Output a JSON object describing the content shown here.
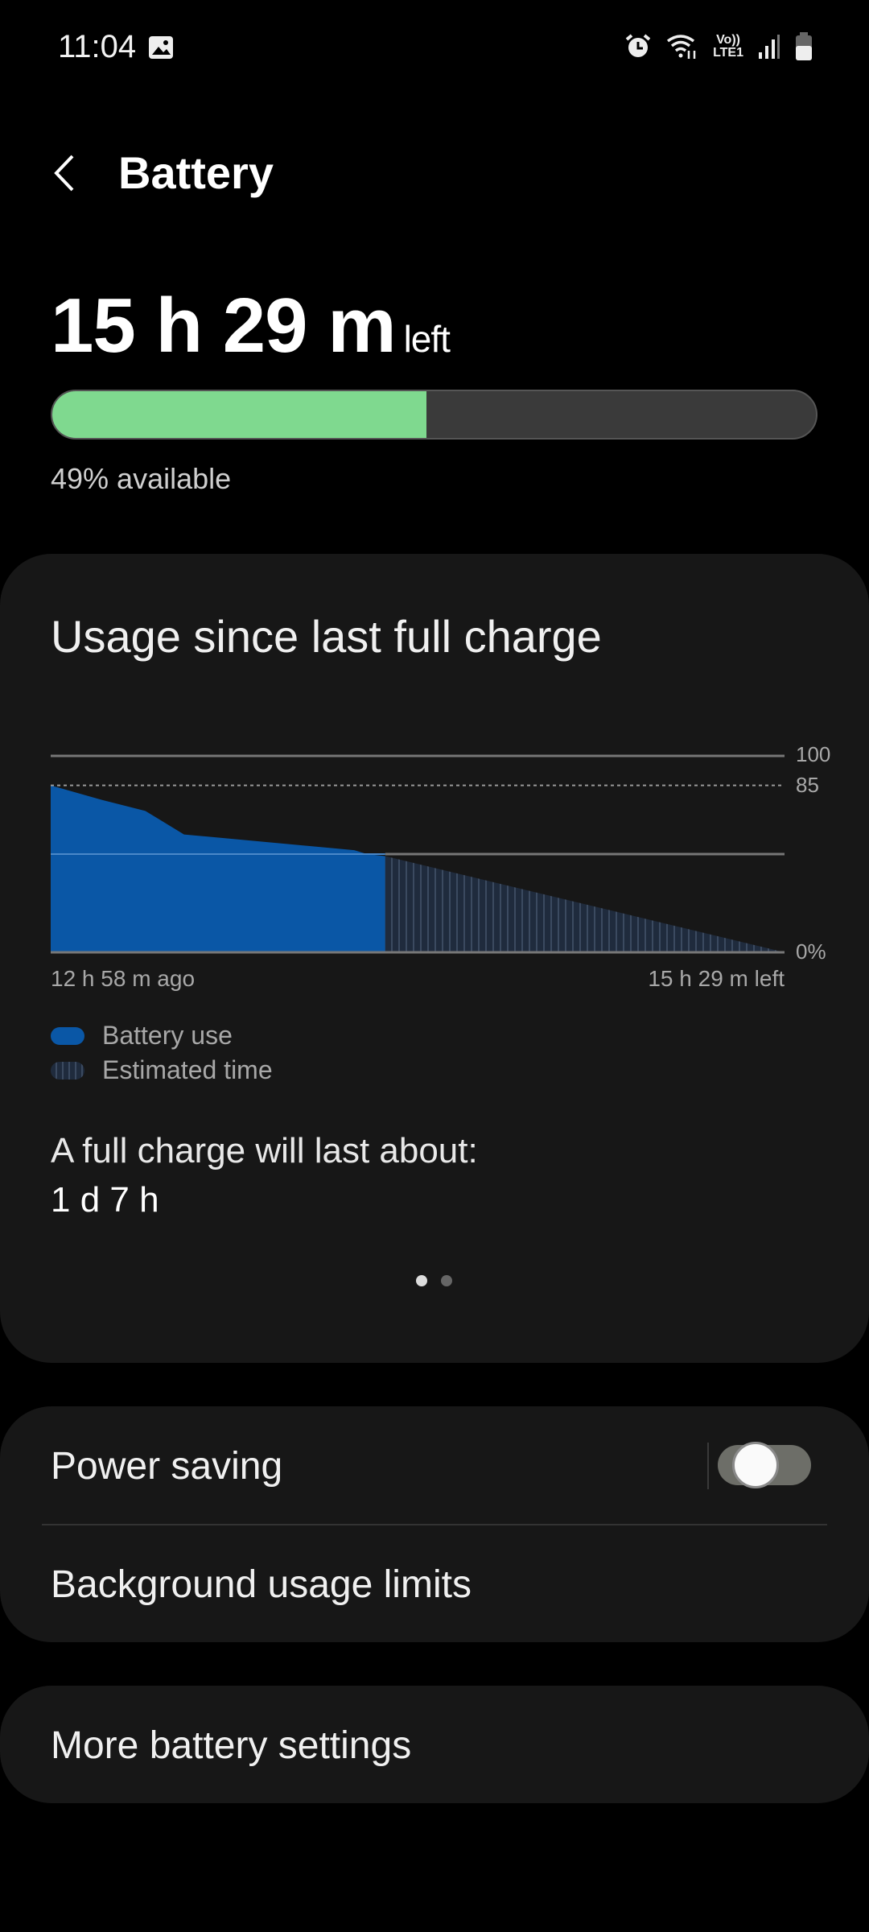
{
  "status_bar": {
    "time": "11:04",
    "icons": [
      "gallery-icon",
      "alarm-icon",
      "wifi-icon",
      "volte-lte1-icon",
      "signal-icon",
      "battery-icon"
    ],
    "volte_label": "Vo))",
    "lte_label": "LTE1"
  },
  "header": {
    "title": "Battery",
    "back_icon": "chevron-left-icon"
  },
  "summary": {
    "time_left": "15 h 29 m",
    "left_suffix": "left",
    "percent": 49,
    "available_text": "49% available",
    "bar_color": "#7fd98f"
  },
  "usage_card": {
    "title": "Usage since last full charge",
    "legend": [
      {
        "label": "Battery use",
        "color": "#0a57a6"
      },
      {
        "label": "Estimated time",
        "color": "#1f2b3d"
      }
    ],
    "full_charge_label": "A full charge will last about:",
    "full_charge_value": "1 d 7 h",
    "page_indicator": {
      "pages": 2,
      "current": 1
    }
  },
  "chart_data": {
    "type": "area",
    "x_unit": "hours relative to now",
    "xlim": [
      -12.97,
      15.48
    ],
    "ylim": [
      0,
      100
    ],
    "x_tick_labels": [
      "12 h 58 m ago",
      "15 h 29 m left"
    ],
    "y_tick_labels": [
      "100",
      "85",
      "0%"
    ],
    "reference_lines": [
      100,
      85,
      50,
      0
    ],
    "series": [
      {
        "name": "Battery use",
        "color": "#0a57a6",
        "x": [
          -12.97,
          -11.1,
          -9.3,
          -7.8,
          -1.2,
          -0.7,
          0
        ],
        "y": [
          85,
          78,
          72,
          60,
          52,
          50,
          49
        ]
      },
      {
        "name": "Estimated time",
        "color": "#1f2b3d",
        "x": [
          0,
          15.48
        ],
        "y": [
          49,
          0
        ]
      }
    ]
  },
  "settings": {
    "power_saving": {
      "label": "Power saving",
      "enabled": false
    },
    "background_limits": {
      "label": "Background usage limits"
    },
    "more": {
      "label": "More battery settings"
    }
  }
}
